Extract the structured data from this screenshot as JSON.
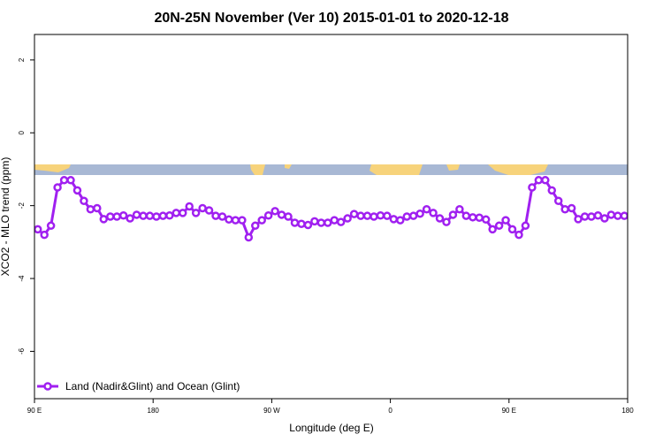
{
  "chart_data": {
    "type": "line",
    "title": "20N-25N November (Ver 10)   2015-01-01 to 2020-12-18",
    "xlabel": "Longitude (deg E)",
    "ylabel": "XCO2 - MLO trend (ppm)",
    "xlim": [
      90,
      540
    ],
    "ylim": [
      -7.3,
      2.7
    ],
    "x_ticks": [
      {
        "value": 90,
        "label": "90 E"
      },
      {
        "value": 180,
        "label": "180"
      },
      {
        "value": 270,
        "label": "90 W"
      },
      {
        "value": 360,
        "label": "0"
      },
      {
        "value": 450,
        "label": "90 E"
      },
      {
        "value": 540,
        "label": "180"
      }
    ],
    "y_ticks": [
      {
        "value": 2,
        "label": "2"
      },
      {
        "value": 0,
        "label": "0"
      },
      {
        "value": -2,
        "label": "-2"
      },
      {
        "value": -4,
        "label": "-4"
      },
      {
        "value": -6,
        "label": "-6"
      }
    ],
    "grid": false,
    "legend_position": "bottom-left",
    "map_strip": {
      "lat_range": "20N-25N",
      "y_top": -0.9,
      "y_bottom": -1.18
    },
    "series": [
      {
        "name": "Land (Nadir&Glint) and Ocean (Glint)",
        "color": "#a020f0",
        "x": [
          92.5,
          97.5,
          102.5,
          107.5,
          112.5,
          117.5,
          122.5,
          127.5,
          132.5,
          137.5,
          142.5,
          147.5,
          152.5,
          157.5,
          162.5,
          167.5,
          172.5,
          177.5,
          182.5,
          187.5,
          192.5,
          197.5,
          202.5,
          207.5,
          212.5,
          217.5,
          222.5,
          227.5,
          232.5,
          237.5,
          242.5,
          247.5,
          252.5,
          257.5,
          262.5,
          267.5,
          272.5,
          277.5,
          282.5,
          287.5,
          292.5,
          297.5,
          302.5,
          307.5,
          312.5,
          317.5,
          322.5,
          327.5,
          332.5,
          337.5,
          342.5,
          347.5,
          352.5,
          357.5,
          362.5,
          367.5,
          372.5,
          377.5,
          382.5,
          387.5,
          392.5,
          397.5,
          402.5,
          407.5,
          412.5,
          417.5,
          422.5,
          427.5,
          432.5,
          437.5,
          442.5,
          447.5,
          452.5,
          457.5,
          462.5,
          467.5,
          472.5,
          477.5,
          482.5,
          487.5,
          492.5,
          497.5,
          502.5,
          507.5,
          512.5,
          517.5,
          522.5,
          527.5,
          532.5,
          537.5
        ],
        "y": [
          -2.65,
          -2.8,
          -2.55,
          -1.5,
          -1.3,
          -1.3,
          -1.58,
          -1.87,
          -2.1,
          -2.07,
          -2.37,
          -2.3,
          -2.3,
          -2.27,
          -2.35,
          -2.25,
          -2.28,
          -2.28,
          -2.3,
          -2.28,
          -2.27,
          -2.2,
          -2.2,
          -2.02,
          -2.2,
          -2.07,
          -2.13,
          -2.28,
          -2.3,
          -2.38,
          -2.4,
          -2.4,
          -2.87,
          -2.55,
          -2.4,
          -2.27,
          -2.15,
          -2.25,
          -2.3,
          -2.47,
          -2.5,
          -2.53,
          -2.43,
          -2.47,
          -2.47,
          -2.4,
          -2.45,
          -2.35,
          -2.23,
          -2.28,
          -2.28,
          -2.3,
          -2.27,
          -2.28,
          -2.37,
          -2.4,
          -2.3,
          -2.28,
          -2.22,
          -2.1,
          -2.2,
          -2.35,
          -2.45,
          -2.25,
          -2.1,
          -2.28,
          -2.32,
          -2.33,
          -2.38,
          -2.65,
          -2.55,
          -2.4,
          -2.65,
          -2.8,
          -2.55,
          -1.5,
          -1.3,
          -1.3,
          -1.58,
          -1.87,
          -2.1,
          -2.07,
          -2.37,
          -2.3,
          -2.3,
          -2.27,
          -2.35,
          -2.25,
          -2.28,
          -2.28
        ]
      }
    ]
  }
}
